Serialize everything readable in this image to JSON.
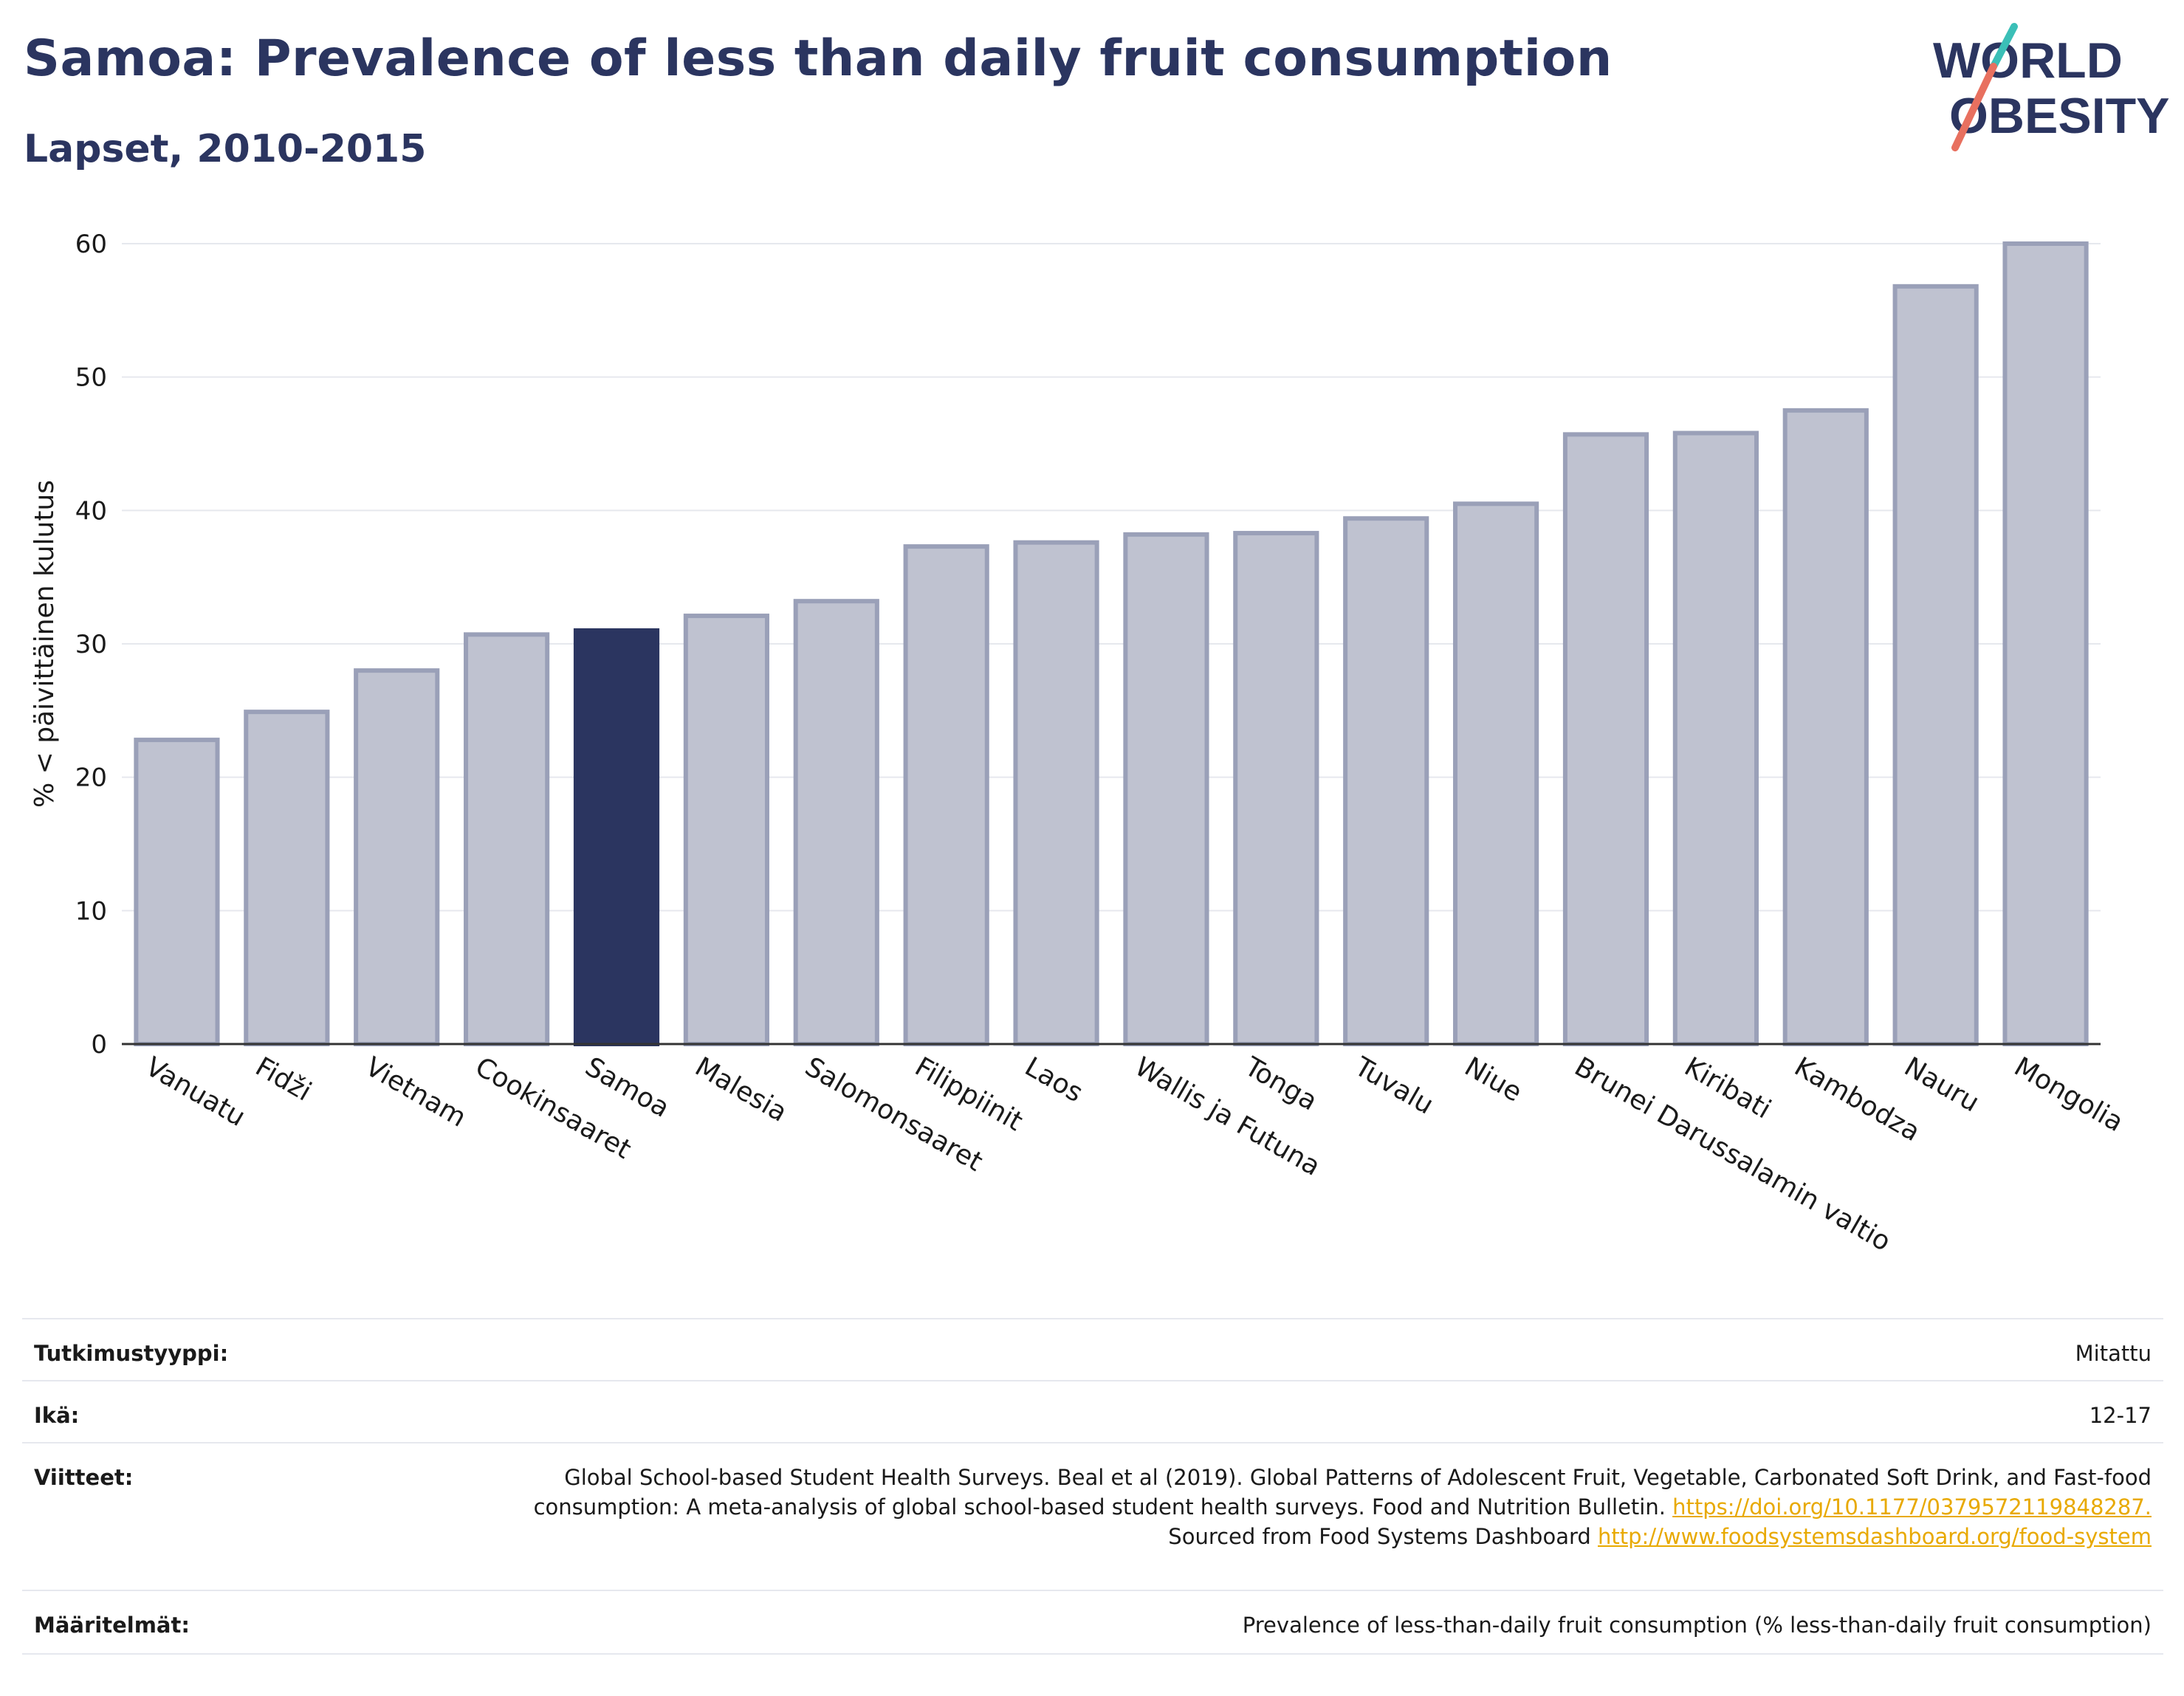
{
  "header": {
    "title": "Samoa: Prevalence of less than daily fruit consumption",
    "subtitle": "Lapset, 2010-2015",
    "logo_line1": "WORLD",
    "logo_line2": "OBESITY"
  },
  "colors": {
    "title": "#2b3560",
    "highlight_bar": "#2b3560",
    "bar_fill": "#bfc2d0",
    "bar_stroke": "#9aa0b8",
    "logo_teal": "#3bbfb7",
    "logo_coral": "#e8705f",
    "link": "#e8a900"
  },
  "chart_data": {
    "type": "bar",
    "ylabel": "% < päivittäinen kulutus",
    "xlabel": "",
    "ylim": [
      0,
      60
    ],
    "yticks": [
      0,
      10,
      20,
      30,
      40,
      50,
      60
    ],
    "grid": true,
    "highlight": "Samoa",
    "categories": [
      "Vanuatu",
      "Fidži",
      "Vietnam",
      "Cookinsaaret",
      "Samoa",
      "Malesia",
      "Salomonsaaret",
      "Filippiinit",
      "Laos",
      "Wallis ja Futuna",
      "Tonga",
      "Tuvalu",
      "Niue",
      "Brunei Darussalamin valtio",
      "Kiribati",
      "Kambodza",
      "Nauru",
      "Mongolia"
    ],
    "values": [
      22.8,
      24.9,
      28.0,
      30.7,
      31.0,
      32.1,
      33.2,
      37.3,
      37.6,
      38.2,
      38.3,
      39.4,
      40.5,
      45.7,
      45.8,
      47.5,
      56.8,
      60.0
    ]
  },
  "info": {
    "study_type_label": "Tutkimustyyppi:",
    "study_type_value": "Mitattu",
    "age_label": "Ikä:",
    "age_value": "12-17",
    "refs_label": "Viitteet:",
    "refs_text1": "Global School-based Student Health Surveys. Beal et al (2019). Global Patterns of Adolescent Fruit, Vegetable, Carbonated Soft Drink, and Fast-food consumption: A meta-analysis of global school-based student health surveys. Food and Nutrition Bulletin.",
    "refs_link1": "https://doi.org/10.1177/0379572119848287.",
    "refs_text2": "Sourced from Food Systems Dashboard",
    "refs_link2": "http://www.foodsystemsdashboard.org/food-system",
    "defs_label": "Määritelmät:",
    "defs_value": "Prevalence of less-than-daily fruit consumption (% less-than-daily fruit consumption)"
  }
}
